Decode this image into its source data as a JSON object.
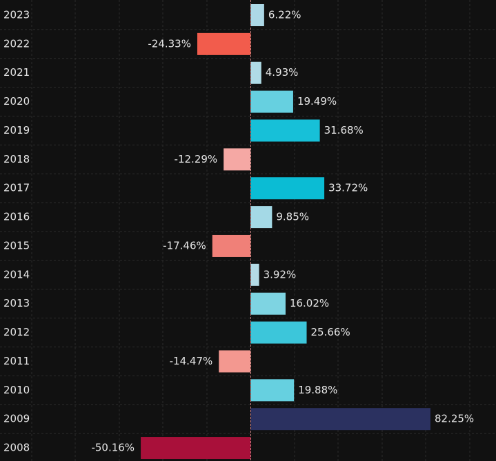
{
  "chart_data": {
    "type": "barh",
    "categories": [
      "2023",
      "2022",
      "2021",
      "2020",
      "2019",
      "2018",
      "2017",
      "2016",
      "2015",
      "2014",
      "2013",
      "2012",
      "2011",
      "2010",
      "2009",
      "2008"
    ],
    "values": [
      6.22,
      -24.33,
      4.93,
      19.49,
      31.68,
      -12.29,
      33.72,
      9.85,
      -17.46,
      3.92,
      16.02,
      25.66,
      -14.47,
      19.88,
      82.25,
      -50.16
    ],
    "value_labels": [
      "6.22%",
      "-24.33%",
      "4.93%",
      "19.49%",
      "31.68%",
      "-12.29%",
      "33.72%",
      "9.85%",
      "-17.46%",
      "3.92%",
      "16.02%",
      "25.66%",
      "-14.47%",
      "19.88%",
      "82.25%",
      "-50.16%"
    ],
    "colors": [
      "#add8e6",
      "#f25c4c",
      "#b0dbe6",
      "#66d0e0",
      "#17c0d8",
      "#f5a8a4",
      "#0bbcd4",
      "#a4d9e6",
      "#f08078",
      "#b4dbe6",
      "#7ed4e2",
      "#3cc6da",
      "#f39890",
      "#66d0e0",
      "#2b3160",
      "#a9103a"
    ],
    "xlim": [
      -100,
      110
    ]
  }
}
